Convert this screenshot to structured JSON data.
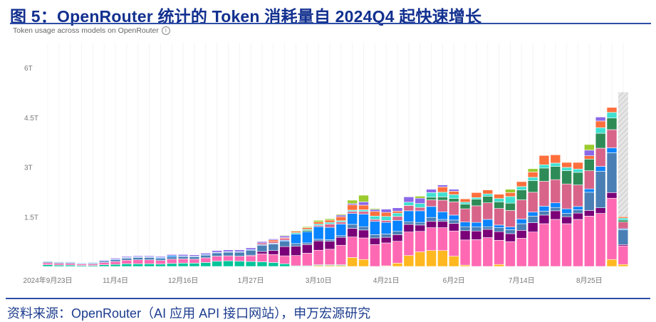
{
  "title": "图 5：OpenRouter 统计的 Token 消耗量自 2024Q4 起快速增长",
  "subtitle": "Token usage across models on OpenRouter",
  "info_icon": "i",
  "source": "资料来源：OpenRouter（AI 应用 API 接口网站），申万宏源研究",
  "chart_data": {
    "type": "bar",
    "stacked": true,
    "title": "Token usage across models on OpenRouter",
    "xlabel": "",
    "ylabel": "",
    "ylim": [
      0,
      6.6
    ],
    "y_unit": "T",
    "y_ticks": [
      {
        "value": 1.5,
        "label": "1.5T"
      },
      {
        "value": 3,
        "label": "3T"
      },
      {
        "value": 4.5,
        "label": "4.5T"
      },
      {
        "value": 6,
        "label": "6T"
      }
    ],
    "x_ticks": [
      {
        "bar": 1,
        "label": "2024年9月23日"
      },
      {
        "bar": 7,
        "label": "11月4日"
      },
      {
        "bar": 13,
        "label": "12月16日"
      },
      {
        "bar": 19,
        "label": "1月27日"
      },
      {
        "bar": 25,
        "label": "3月10日"
      },
      {
        "bar": 31,
        "label": "4月21日"
      },
      {
        "bar": 37,
        "label": "6月2日"
      },
      {
        "bar": 43,
        "label": "7月14日"
      },
      {
        "bar": 49,
        "label": "8月25日"
      }
    ],
    "bar_count": 52,
    "partial_last_bar_projection": 5.26,
    "projection_color": "#d9d9d9",
    "series": [
      {
        "color": "#FFB81F",
        "values": [
          0,
          0,
          0,
          0,
          0,
          0,
          0,
          0,
          0,
          0,
          0,
          0,
          0,
          0,
          0,
          0,
          0,
          0,
          0,
          0,
          0,
          0,
          0,
          0,
          0.03,
          0.03,
          0.03,
          0.27,
          0.21,
          0,
          0.02,
          0.1,
          0.33,
          0.44,
          0.48,
          0.48,
          0.31,
          0.04,
          0,
          0,
          0.06,
          0,
          0,
          0,
          0,
          0,
          0,
          0,
          0,
          0,
          0.21,
          0.06
        ]
      },
      {
        "color": "#00C49A",
        "values": [
          0.05,
          0.04,
          0.04,
          0.03,
          0.03,
          0.05,
          0.06,
          0.08,
          0.08,
          0.08,
          0.07,
          0.09,
          0.1,
          0.1,
          0.12,
          0.16,
          0.17,
          0.16,
          0.15,
          0.14,
          0.12,
          0.08,
          0.02,
          0.02,
          0.02,
          0.02,
          0.02,
          0,
          0,
          0,
          0,
          0,
          0,
          0,
          0,
          0,
          0,
          0,
          0,
          0,
          0,
          0,
          0,
          0,
          0,
          0,
          0,
          0,
          0,
          0,
          0,
          0
        ]
      },
      {
        "color": "#FF69B4",
        "values": [
          0.06,
          0.05,
          0.05,
          0.04,
          0.04,
          0.07,
          0.09,
          0.11,
          0.12,
          0.12,
          0.11,
          0.13,
          0.13,
          0.12,
          0.14,
          0.15,
          0.15,
          0.15,
          0.17,
          0.24,
          0.24,
          0.24,
          0.31,
          0.38,
          0.44,
          0.47,
          0.59,
          0.62,
          0.65,
          0.66,
          0.69,
          0.66,
          0.71,
          0.62,
          0.69,
          0.69,
          0.76,
          0.76,
          0.81,
          0.87,
          0.73,
          0.75,
          0.85,
          1.04,
          1.29,
          1.42,
          1.29,
          1.42,
          1.52,
          1.6,
          1.85,
          0.56
        ]
      },
      {
        "color": "#7A0177",
        "values": [
          0,
          0,
          0,
          0,
          0,
          0,
          0,
          0,
          0,
          0,
          0,
          0,
          0,
          0,
          0,
          0,
          0,
          0,
          0.02,
          0.07,
          0.12,
          0.28,
          0.28,
          0.26,
          0.28,
          0.24,
          0.24,
          0.26,
          0.24,
          0.2,
          0.17,
          0.2,
          0.23,
          0.19,
          0.19,
          0.19,
          0.23,
          0.28,
          0.26,
          0.25,
          0.26,
          0.24,
          0.24,
          0.28,
          0.26,
          0.26,
          0.21,
          0.19,
          0.17,
          0.17,
          0.17,
          0.04
        ]
      },
      {
        "color": "#4A7FB5",
        "values": [
          0.03,
          0.03,
          0.03,
          0.02,
          0.03,
          0.04,
          0.05,
          0.06,
          0.07,
          0.07,
          0.06,
          0.07,
          0.07,
          0.07,
          0.08,
          0.1,
          0.11,
          0.12,
          0.15,
          0.19,
          0.2,
          0.16,
          0.08,
          0.05,
          0.05,
          0.05,
          0.05,
          0.12,
          0.1,
          0.1,
          0.1,
          0.1,
          0.08,
          0.08,
          0.12,
          0.06,
          0.1,
          0.12,
          0.12,
          0.08,
          0.12,
          0.12,
          0.2,
          0.2,
          0.12,
          0.1,
          0.1,
          0.1,
          0.55,
          1.1,
          1.2,
          0.45
        ]
      },
      {
        "color": "#0A84FF",
        "values": [
          0.02,
          0.02,
          0.02,
          0.02,
          0.02,
          0.02,
          0.02,
          0.02,
          0.02,
          0.02,
          0.03,
          0.04,
          0.02,
          0.02,
          0.02,
          0.02,
          0.02,
          0.02,
          0.02,
          0.02,
          0.02,
          0.03,
          0.29,
          0.34,
          0.38,
          0.37,
          0.35,
          0.33,
          0.38,
          0.4,
          0.35,
          0.33,
          0.33,
          0.35,
          0.33,
          0.23,
          0.15,
          0.14,
          0.14,
          0.22,
          0.08,
          0.08,
          0.14,
          0.12,
          0.15,
          0.14,
          0.14,
          0.1,
          0.1,
          0.15,
          0.15,
          0.03
        ]
      },
      {
        "color": "#D8648A",
        "values": [
          0,
          0,
          0,
          0,
          0,
          0,
          0,
          0,
          0,
          0,
          0,
          0,
          0,
          0,
          0,
          0,
          0,
          0,
          0,
          0.05,
          0.05,
          0.05,
          0,
          0,
          0.04,
          0.1,
          0.06,
          0.06,
          0.08,
          0.06,
          0.06,
          0.12,
          0.16,
          0.1,
          0.2,
          0.35,
          0.4,
          0.4,
          0.5,
          0.5,
          0.5,
          0.5,
          0.58,
          0.6,
          0.75,
          0.7,
          0.75,
          0.65,
          0.55,
          0.55,
          0.55,
          0.2
        ]
      },
      {
        "color": "#2E8B57",
        "values": [
          0,
          0,
          0,
          0,
          0,
          0,
          0,
          0,
          0,
          0,
          0,
          0,
          0,
          0,
          0,
          0,
          0,
          0,
          0,
          0,
          0,
          0,
          0,
          0.04,
          0,
          0,
          0,
          0,
          0,
          0,
          0,
          0,
          0,
          0,
          0.08,
          0.1,
          0.1,
          0.14,
          0.2,
          0.2,
          0.2,
          0.22,
          0.3,
          0.35,
          0.4,
          0.4,
          0.4,
          0.38,
          0.35,
          0.45,
          0.35,
          0.06
        ]
      },
      {
        "color": "#40E0D0",
        "values": [
          0,
          0,
          0,
          0,
          0,
          0,
          0,
          0,
          0,
          0,
          0,
          0,
          0,
          0,
          0,
          0,
          0,
          0,
          0,
          0,
          0,
          0,
          0.04,
          0.03,
          0.04,
          0.05,
          0.04,
          0.04,
          0.05,
          0.1,
          0.12,
          0.1,
          0.1,
          0.12,
          0.14,
          0.14,
          0.12,
          0.06,
          0.05,
          0.07,
          0.1,
          0.2,
          0.1,
          0.1,
          0.1,
          0.1,
          0.1,
          0.1,
          0,
          0.17,
          0.17,
          0.06
        ]
      },
      {
        "color": "#FF6F3C",
        "values": [
          0,
          0,
          0,
          0,
          0,
          0,
          0,
          0,
          0,
          0,
          0,
          0,
          0,
          0,
          0,
          0,
          0,
          0,
          0,
          0,
          0.05,
          0.03,
          0.04,
          0.05,
          0.06,
          0.07,
          0.12,
          0.16,
          0.14,
          0.14,
          0.12,
          0.06,
          0,
          0,
          0,
          0.16,
          0.1,
          0.1,
          0.15,
          0.12,
          0.13,
          0.12,
          0.15,
          0.16,
          0.28,
          0.25,
          0.15,
          0.2,
          0.1,
          0.2,
          0.15,
          0.04
        ]
      },
      {
        "color": "#8B68E8",
        "values": [
          0.01,
          0.01,
          0.01,
          0.01,
          0.01,
          0.02,
          0.03,
          0.03,
          0.03,
          0.03,
          0.03,
          0.03,
          0.04,
          0.04,
          0.04,
          0.05,
          0.05,
          0.05,
          0.05,
          0.04,
          0.03,
          0.05,
          0,
          0,
          0,
          0,
          0.05,
          0.04,
          0.1,
          0.06,
          0.1,
          0.1,
          0.16,
          0.16,
          0.1,
          0.06,
          0.06,
          0,
          0,
          0,
          0,
          0,
          0,
          0,
          0,
          0,
          0,
          0,
          0.17,
          0.12,
          0,
          0
        ]
      },
      {
        "color": "#9BCB2E",
        "values": [
          0,
          0,
          0,
          0,
          0,
          0,
          0,
          0,
          0,
          0,
          0,
          0,
          0,
          0,
          0,
          0,
          0,
          0,
          0,
          0,
          0,
          0.02,
          0.02,
          0.03,
          0.05,
          0.04,
          0.03,
          0.1,
          0.2,
          0.03,
          0,
          0,
          0,
          0.06,
          0,
          0,
          0,
          0,
          0,
          0,
          0,
          0.1,
          0,
          0.1,
          0,
          0,
          0,
          0,
          0.17,
          0,
          0,
          0
        ]
      }
    ]
  }
}
